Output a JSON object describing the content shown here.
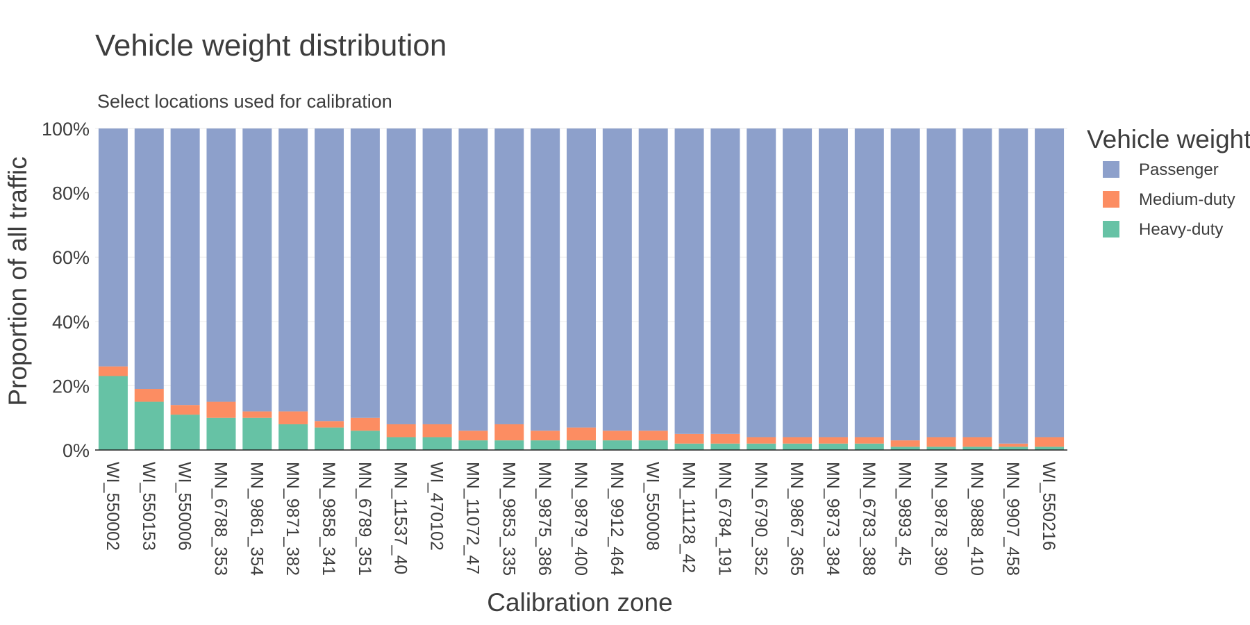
{
  "chart_data": {
    "type": "bar",
    "stacked": true,
    "orientation": "vertical",
    "title": "Vehicle weight distribution",
    "subtitle": "Select locations used for calibration",
    "xlabel": "Calibration zone",
    "ylabel": "Proportion of all traffic",
    "ylim": [
      0,
      100
    ],
    "y_ticks": [
      "0%",
      "20%",
      "40%",
      "60%",
      "80%",
      "100%"
    ],
    "y_tick_values": [
      0,
      20,
      40,
      60,
      80,
      100
    ],
    "grid": true,
    "legend_placement": "right",
    "legend_title": "Vehicle weight",
    "categories": [
      "WI_550002",
      "WI_550153",
      "WI_550006",
      "MN_6788_353",
      "MN_9861_354",
      "MN_9871_382",
      "MN_9858_341",
      "MN_6789_351",
      "MN_11537_40",
      "WI_470102",
      "MN_11072_47",
      "MN_9853_335",
      "MN_9875_386",
      "MN_9879_400",
      "MN_9912_464",
      "WI_550008",
      "MN_11128_42",
      "MN_6784_191",
      "MN_6790_352",
      "MN_9867_365",
      "MN_9873_384",
      "MN_6783_388",
      "MN_9893_45",
      "MN_9878_390",
      "MN_9888_410",
      "MN_9907_458",
      "WI_550216"
    ],
    "series": [
      {
        "name": "Heavy-duty",
        "color": "#66c2a5",
        "values": [
          23,
          15,
          11,
          10,
          10,
          8,
          7,
          6,
          4,
          4,
          3,
          3,
          3,
          3,
          3,
          3,
          2,
          2,
          2,
          2,
          2,
          2,
          1,
          1,
          1,
          1,
          1
        ]
      },
      {
        "name": "Medium-duty",
        "color": "#fc8d62",
        "values": [
          3,
          4,
          3,
          5,
          2,
          4,
          2,
          4,
          4,
          4,
          3,
          5,
          3,
          4,
          3,
          3,
          3,
          3,
          2,
          2,
          2,
          2,
          2,
          3,
          3,
          1,
          3
        ]
      },
      {
        "name": "Passenger",
        "color": "#8da0cb",
        "values": [
          74,
          81,
          86,
          85,
          88,
          88,
          91,
          90,
          92,
          92,
          94,
          92,
          94,
          93,
          94,
          94,
          95,
          95,
          96,
          96,
          96,
          96,
          97,
          96,
          96,
          98,
          96
        ]
      }
    ],
    "legend_order": [
      "Passenger",
      "Medium-duty",
      "Heavy-duty"
    ]
  }
}
